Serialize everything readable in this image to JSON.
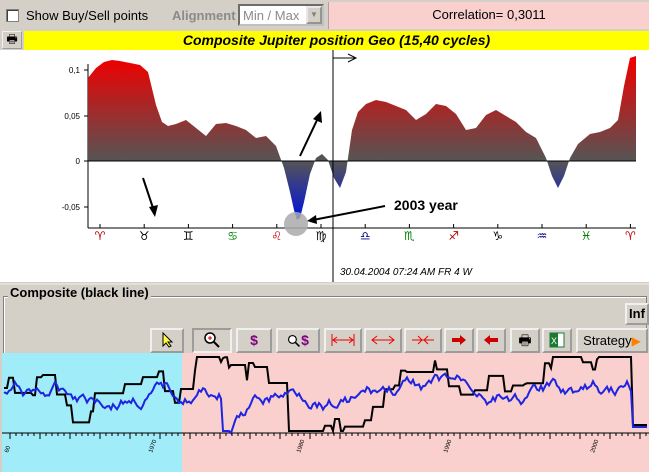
{
  "topbar": {
    "show_points_label": "Show Buy/Sell points",
    "alignment_label": "Alignment",
    "alignment_value": "Min / Max",
    "correlation": "Correlation= 0,3011"
  },
  "main_chart": {
    "title": "Composite Jupiter position Geo  (15,40 cycles)",
    "y_ticks": [
      "0,1",
      "0,05",
      "0",
      "-0,05"
    ],
    "zodiac_signs": [
      "♈",
      "♉",
      "♊",
      "♋",
      "♌",
      "♍",
      "♎",
      "♏",
      "♐",
      "♑",
      "♒",
      "♓",
      "♈"
    ],
    "zodiac_colors": [
      "#c00000",
      "#000000",
      "#000000",
      "#008000",
      "#c00000",
      "#000000",
      "#000080",
      "#008000",
      "#c00000",
      "#000000",
      "#000080",
      "#008000",
      "#c00000"
    ],
    "annotation": "2003 year",
    "cursor_readout": "30.04.2004  07:24 AM FR  4 W",
    "colors": {
      "positive": "#e00000",
      "neutral": "#5a5a5a",
      "negative": "#1020c0"
    }
  },
  "composite": {
    "group_title": "Composite (black line)",
    "inf_label": "Inf",
    "toolbar_icons": [
      "pointer-icon",
      "zoom-icon",
      "dollar-icon",
      "zoom-dollar-icon",
      "fit-range-icon",
      "expand-icon",
      "shrink-icon",
      "arrow-right-icon",
      "arrow-left-icon",
      "print-icon",
      "excel-icon"
    ],
    "strategy_label": "Strategy",
    "x_ticks": [
      "60",
      "1970",
      "1980",
      "1990",
      "2000"
    ],
    "colors": {
      "past_bg": "#a0ecf8",
      "future_bg": "#f9d0ce",
      "price_line": "#000000",
      "composite_line": "#1f24e0"
    }
  }
}
